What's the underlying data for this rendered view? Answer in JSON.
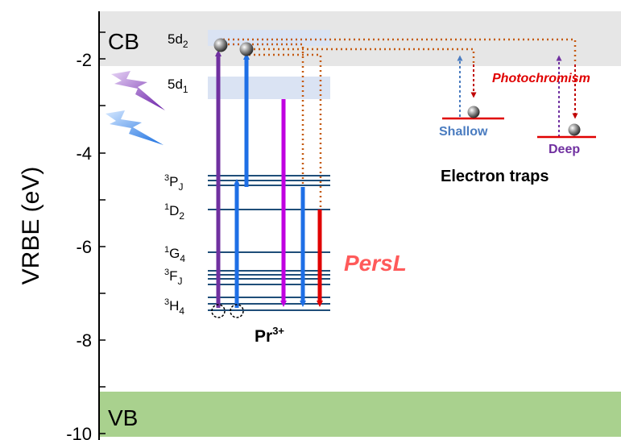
{
  "axis": {
    "ylabel": "VRBE (eV)",
    "ticks": [
      "-2",
      "-4",
      "-6",
      "-8",
      "-10"
    ]
  },
  "bands": {
    "cb_label": "CB",
    "vb_label": "VB"
  },
  "levels": {
    "d2_main": "5d",
    "d2_sub": "2",
    "d1_main": "5d",
    "d1_sub": "1",
    "p_sup": "3",
    "p_main": "P",
    "p_sub": "J",
    "d_sup": "1",
    "d_main": "D",
    "d_sub": "2",
    "g_sup": "1",
    "g_main": "G",
    "g_sub": "4",
    "f_sup": "3",
    "f_main": "F",
    "f_sub": "J",
    "h_sup": "3",
    "h_main": "H",
    "h_sub": "4"
  },
  "ion": {
    "main": "Pr",
    "sup": "3+"
  },
  "labels": {
    "persl": "PersL",
    "photochromism": "Photochromism",
    "shallow": "Shallow",
    "deep": "Deep",
    "traps": "Electron traps"
  },
  "colors": {
    "cb": "#e6e6e6",
    "vb": "#a9d18e",
    "level_5d": "#dae3f3",
    "level_line": "#1f4e79",
    "purple": "#7030a0",
    "blue": "#1e6fe6",
    "magenta": "#c000e0",
    "red": "#e00000",
    "orange_dot": "#c55a11",
    "persl": "#ff5a5a",
    "photochromism": "#e00000",
    "shallow": "#4a7cc0",
    "deep": "#7030a0"
  }
}
